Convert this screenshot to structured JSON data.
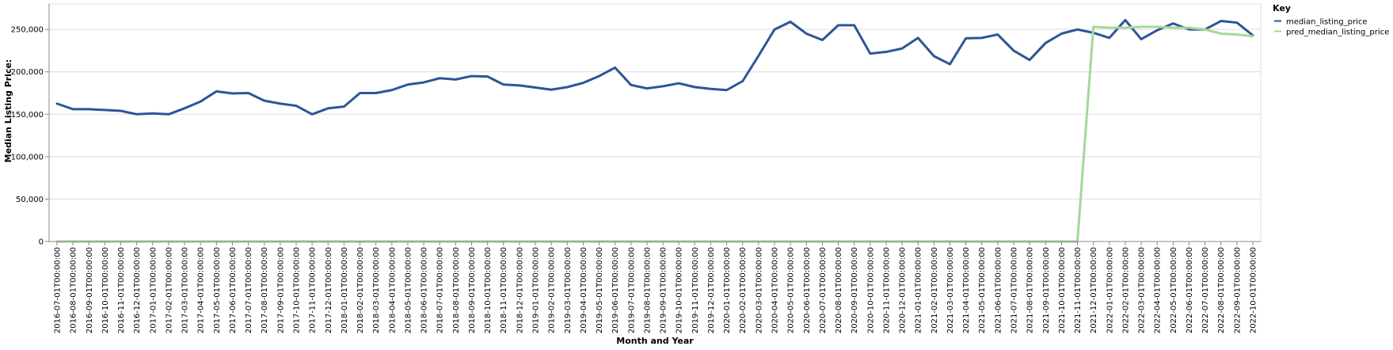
{
  "chart_data": {
    "type": "line",
    "xlabel": "Month and Year",
    "ylabel": "Median Listing Price:",
    "ylim": [
      0,
      280000
    ],
    "yticks": [
      0,
      50000,
      100000,
      150000,
      200000,
      250000
    ],
    "ytick_labels": [
      "0",
      "50,000",
      "100,000",
      "150,000",
      "200,000",
      "250,000"
    ],
    "grid": true,
    "legend": {
      "title": "Key",
      "position": "top-right"
    },
    "categories": [
      "2016-07-01T00:00:00",
      "2016-08-01T00:00:00",
      "2016-09-01T00:00:00",
      "2016-10-01T00:00:00",
      "2016-11-01T00:00:00",
      "2016-12-01T00:00:00",
      "2017-01-01T00:00:00",
      "2017-02-01T00:00:00",
      "2017-03-01T00:00:00",
      "2017-04-01T00:00:00",
      "2017-05-01T00:00:00",
      "2017-06-01T00:00:00",
      "2017-07-01T00:00:00",
      "2017-08-01T00:00:00",
      "2017-09-01T00:00:00",
      "2017-10-01T00:00:00",
      "2017-11-01T00:00:00",
      "2017-12-01T00:00:00",
      "2018-01-01T00:00:00",
      "2018-02-01T00:00:00",
      "2018-03-01T00:00:00",
      "2018-04-01T00:00:00",
      "2018-05-01T00:00:00",
      "2018-06-01T00:00:00",
      "2018-07-01T00:00:00",
      "2018-08-01T00:00:00",
      "2018-09-01T00:00:00",
      "2018-10-01T00:00:00",
      "2018-11-01T00:00:00",
      "2018-12-01T00:00:00",
      "2019-01-01T00:00:00",
      "2019-02-01T00:00:00",
      "2019-03-01T00:00:00",
      "2019-04-01T00:00:00",
      "2019-05-01T00:00:00",
      "2019-06-01T00:00:00",
      "2019-07-01T00:00:00",
      "2019-08-01T00:00:00",
      "2019-09-01T00:00:00",
      "2019-10-01T00:00:00",
      "2019-11-01T00:00:00",
      "2019-12-01T00:00:00",
      "2020-01-01T00:00:00",
      "2020-02-01T00:00:00",
      "2020-03-01T00:00:00",
      "2020-04-01T00:00:00",
      "2020-05-01T00:00:00",
      "2020-06-01T00:00:00",
      "2020-07-01T00:00:00",
      "2020-08-01T00:00:00",
      "2020-09-01T00:00:00",
      "2020-10-01T00:00:00",
      "2020-11-01T00:00:00",
      "2020-12-01T00:00:00",
      "2021-01-01T00:00:00",
      "2021-02-01T00:00:00",
      "2021-03-01T00:00:00",
      "2021-04-01T00:00:00",
      "2021-05-01T00:00:00",
      "2021-06-01T00:00:00",
      "2021-07-01T00:00:00",
      "2021-08-01T00:00:00",
      "2021-09-01T00:00:00",
      "2021-10-01T00:00:00",
      "2021-11-01T00:00:00",
      "2021-12-01T00:00:00",
      "2022-01-01T00:00:00",
      "2022-02-01T00:00:00",
      "2022-03-01T00:00:00",
      "2022-04-01T00:00:00",
      "2022-05-01T00:00:00",
      "2022-06-01T00:00:00",
      "2022-07-01T00:00:00",
      "2022-08-01T00:00:00",
      "2022-09-01T00:00:00",
      "2022-10-01T00:00:00"
    ],
    "series": [
      {
        "name": "median_listing_price",
        "color": "#2c5697",
        "values": [
          162500,
          156000,
          156000,
          155000,
          154000,
          150000,
          151000,
          150000,
          157000,
          165000,
          177000,
          174500,
          175000,
          166000,
          162500,
          160000,
          150000,
          157000,
          159000,
          175000,
          175000,
          178500,
          185000,
          187500,
          192500,
          191000,
          195000,
          194500,
          185000,
          184000,
          181500,
          179000,
          182000,
          187000,
          195000,
          205000,
          184500,
          180500,
          183000,
          186500,
          182000,
          179900,
          178500,
          189000,
          219000,
          249900,
          259000,
          245000,
          237500,
          254900,
          254900,
          221500,
          223500,
          227500,
          240000,
          218500,
          209000,
          239500,
          240000,
          244000,
          225000,
          214000,
          234000,
          245000,
          249900,
          246000,
          240000,
          261000,
          238500,
          249000,
          257000,
          250000,
          249900,
          259900,
          258000,
          243000
        ]
      },
      {
        "name": "pred_median_listing_price",
        "color": "#a3d99a",
        "values": [
          0,
          0,
          0,
          0,
          0,
          0,
          0,
          0,
          0,
          0,
          0,
          0,
          0,
          0,
          0,
          0,
          0,
          0,
          0,
          0,
          0,
          0,
          0,
          0,
          0,
          0,
          0,
          0,
          0,
          0,
          0,
          0,
          0,
          0,
          0,
          0,
          0,
          0,
          0,
          0,
          0,
          0,
          0,
          0,
          0,
          0,
          0,
          0,
          0,
          0,
          0,
          0,
          0,
          0,
          0,
          0,
          0,
          0,
          0,
          0,
          0,
          0,
          0,
          0,
          0,
          253000,
          252000,
          252000,
          253000,
          253000,
          252000,
          252000,
          250000,
          245000,
          244000,
          242000
        ]
      }
    ]
  }
}
